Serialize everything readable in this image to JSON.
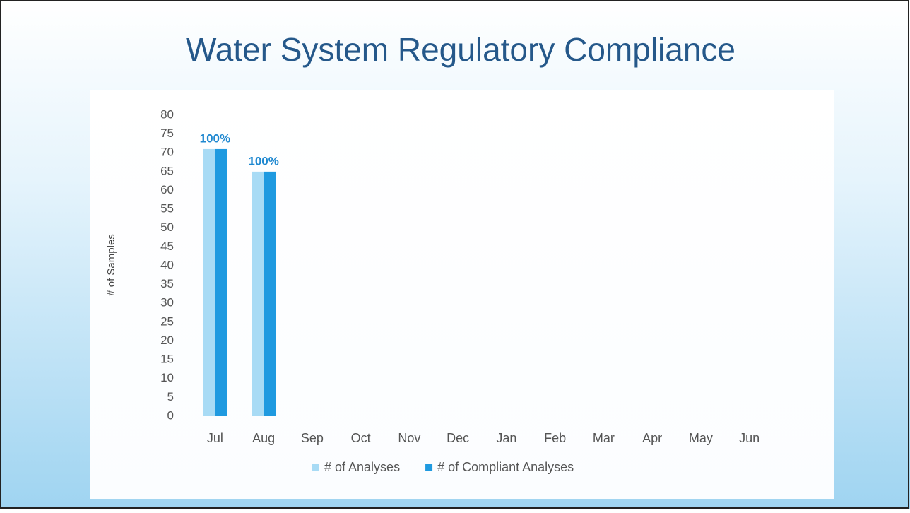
{
  "chart_data": {
    "type": "bar",
    "title": "Water System Regulatory Compliance",
    "y_label": "# of Samples",
    "categories": [
      "Jul",
      "Aug",
      "Sep",
      "Oct",
      "Nov",
      "Dec",
      "Jan",
      "Feb",
      "Mar",
      "Apr",
      "May",
      "Jun"
    ],
    "series": [
      {
        "name": "# of Analyses",
        "color": "#a8dbf5",
        "values": [
          71,
          65,
          null,
          null,
          null,
          null,
          null,
          null,
          null,
          null,
          null,
          null
        ]
      },
      {
        "name": "# of Compliant Analyses",
        "color": "#1f9ae0",
        "values": [
          71,
          65,
          null,
          null,
          null,
          null,
          null,
          null,
          null,
          null,
          null,
          null
        ]
      }
    ],
    "compliance": {
      "values": [
        100,
        100,
        null,
        null,
        null,
        null,
        null,
        null,
        null,
        null,
        null,
        null
      ],
      "value_labels": [
        "100%",
        "100%",
        null,
        null,
        null,
        null,
        null,
        null,
        null,
        null,
        null,
        null
      ],
      "color": "#1e88d0"
    },
    "ylim": [
      0,
      80
    ],
    "yticks": [
      0,
      5,
      10,
      15,
      20,
      25,
      30,
      35,
      40,
      45,
      50,
      55,
      60,
      65,
      70,
      75,
      80
    ],
    "grid": false,
    "legend": "bottom"
  }
}
